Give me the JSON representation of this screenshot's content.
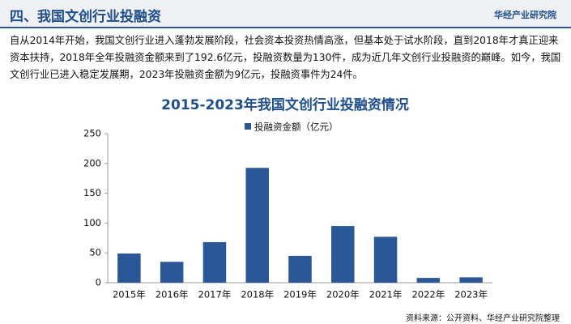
{
  "header": {
    "title": "四、我国文创行业投融资",
    "brand": "华经产业研究院"
  },
  "paragraph": "自从2014年开始，我国文创行业进入蓬勃发展阶段，社会资本投资热情高涨，但基本处于试水阶段，直到2018年才真正迎来资本扶持，2018年全年投融资金额来到了192.6亿元，投融资数量为130件，成为近几年文创行业投融资的巅峰。如今，我国文创行业已进入稳定发展期，2023年投融资金额为9亿元，投融资事件为24件。",
  "chart_data": {
    "type": "bar",
    "title": "2015-2023年我国文创行业投融资情况",
    "categories": [
      "2015年",
      "2016年",
      "2017年",
      "2018年",
      "2019年",
      "2020年",
      "2021年",
      "2022年",
      "2023年"
    ],
    "series": [
      {
        "name": "投融资金额（亿元）",
        "color": "#2b5797",
        "values": [
          49,
          35,
          68,
          192.6,
          45,
          95,
          77,
          8,
          9
        ]
      }
    ],
    "ylim": [
      0,
      250
    ],
    "yticks": [
      0,
      50,
      100,
      150,
      200,
      250
    ],
    "grid": false,
    "legend": "top"
  },
  "source": "资料来源：公开资料、华经产业研究院整理"
}
